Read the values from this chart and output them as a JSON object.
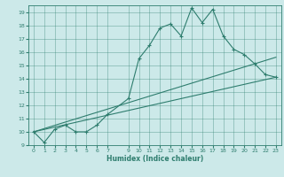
{
  "xlabel": "Humidex (Indice chaleur)",
  "ylabel": "",
  "xlim": [
    -0.5,
    23.5
  ],
  "ylim": [
    9,
    19.5
  ],
  "xticks": [
    0,
    1,
    2,
    3,
    4,
    5,
    6,
    7,
    9,
    10,
    11,
    12,
    13,
    14,
    15,
    16,
    17,
    18,
    19,
    20,
    21,
    22,
    23
  ],
  "yticks": [
    9,
    10,
    11,
    12,
    13,
    14,
    15,
    16,
    17,
    18,
    19
  ],
  "bg_color": "#cce9e9",
  "line_color": "#2e7d6e",
  "line1_x": [
    0,
    1,
    2,
    3,
    4,
    5,
    6,
    7,
    9,
    10,
    11,
    12,
    13,
    14,
    15,
    16,
    17,
    18,
    19,
    20,
    21,
    22,
    23
  ],
  "line1_y": [
    10,
    9.2,
    10.2,
    10.5,
    10,
    10,
    10.5,
    11.3,
    12.5,
    15.5,
    16.5,
    17.8,
    18.1,
    17.2,
    19.3,
    18.2,
    19.2,
    17.2,
    16.2,
    15.8,
    15.1,
    14.3,
    14.1
  ],
  "line2_x": [
    0,
    23
  ],
  "line2_y": [
    10,
    14.1
  ],
  "line3_x": [
    0,
    23
  ],
  "line3_y": [
    10,
    15.6
  ],
  "marker": "+"
}
